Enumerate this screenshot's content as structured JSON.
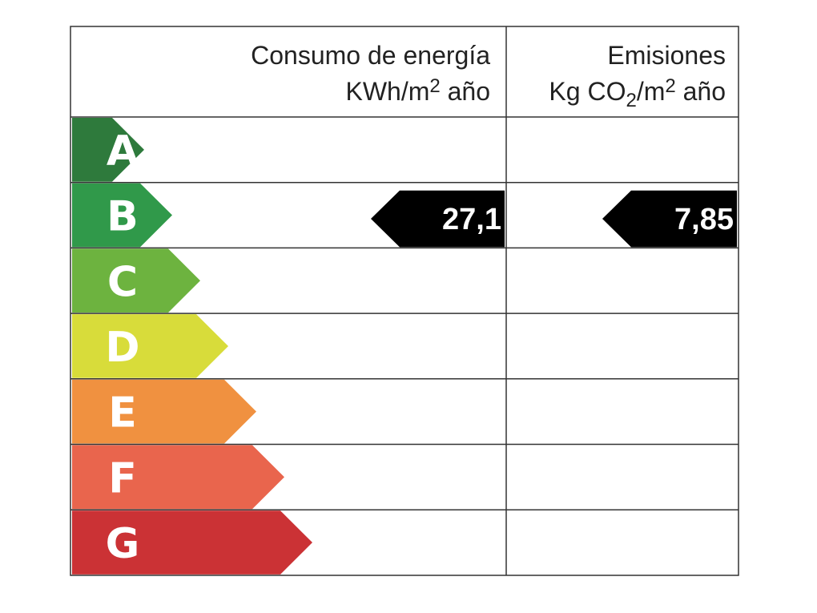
{
  "header": {
    "consumption": {
      "title": "Consumo de energía",
      "unit": {
        "before": "KWh/m",
        "sup": "2",
        "after": " año"
      }
    },
    "emissions": {
      "title": "Emisiones",
      "unit": {
        "before": "Kg CO",
        "sub": "2",
        "middle": "/m",
        "sup": "2",
        "after": " año"
      }
    }
  },
  "classes": [
    {
      "letter": "A",
      "color": "#2e7a3c"
    },
    {
      "letter": "B",
      "color": "#30994a"
    },
    {
      "letter": "C",
      "color": "#6db33f"
    },
    {
      "letter": "D",
      "color": "#d8dc3a"
    },
    {
      "letter": "E",
      "color": "#f09140"
    },
    {
      "letter": "F",
      "color": "#e9654d"
    },
    {
      "letter": "G",
      "color": "#cb3235"
    }
  ],
  "ratings": {
    "consumption": {
      "class": "B",
      "value": "27,1"
    },
    "emissions": {
      "class": "B",
      "value": "7,85"
    }
  }
}
